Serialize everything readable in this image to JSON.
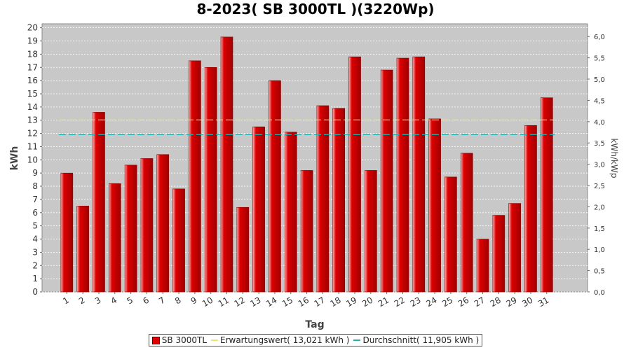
{
  "chart_data": {
    "type": "bar",
    "title": "8-2023( SB 3000TL )(3220Wp)",
    "x_label": "Tag",
    "y_label": "kWh",
    "y2_label": "kWh/kWp",
    "categories": [
      "1",
      "2",
      "3",
      "4",
      "5",
      "6",
      "7",
      "8",
      "9",
      "10",
      "11",
      "12",
      "13",
      "14",
      "15",
      "16",
      "17",
      "18",
      "19",
      "20",
      "21",
      "22",
      "23",
      "24",
      "25",
      "26",
      "27",
      "28",
      "29",
      "30",
      "31"
    ],
    "series": [
      {
        "name": "SB 3000TL",
        "color": "#dd0000",
        "values": [
          9.0,
          6.5,
          13.6,
          8.2,
          9.6,
          10.1,
          10.4,
          7.8,
          17.5,
          17.0,
          19.3,
          6.4,
          12.5,
          16.0,
          12.1,
          9.2,
          14.1,
          13.9,
          17.8,
          9.2,
          16.8,
          17.7,
          17.8,
          13.1,
          8.7,
          10.5,
          4.0,
          5.8,
          6.7,
          12.6,
          14.7
        ]
      }
    ],
    "reference_lines": [
      {
        "name": "Erwartungswert( 13,021 kWh )",
        "value": 13.021,
        "color": "#e8e870"
      },
      {
        "name": "Durchschnitt( 11,905 kWh )",
        "value": 11.905,
        "color": "#20b0b0"
      }
    ],
    "ylim": [
      0,
      20.3
    ],
    "yticks": [
      0,
      1,
      2,
      3,
      4,
      5,
      6,
      7,
      8,
      9,
      10,
      11,
      12,
      13,
      14,
      15,
      16,
      17,
      18,
      19,
      20
    ],
    "y2lim": [
      0,
      6.3
    ],
    "y2ticks": [
      {
        "value": 0,
        "label": "0,0"
      },
      {
        "value": 0.5,
        "label": "0,5"
      },
      {
        "value": 1,
        "label": "1,0"
      },
      {
        "value": 1.5,
        "label": "1,5"
      },
      {
        "value": 2,
        "label": "2,0"
      },
      {
        "value": 2.5,
        "label": "2,5"
      },
      {
        "value": 3,
        "label": "3,0"
      },
      {
        "value": 3.5,
        "label": "3,5"
      },
      {
        "value": 4,
        "label": "4,0"
      },
      {
        "value": 4.5,
        "label": "4,5"
      },
      {
        "value": 5,
        "label": "5,0"
      },
      {
        "value": 5.5,
        "label": "5,5"
      },
      {
        "value": 6,
        "label": "6,0"
      }
    ],
    "grid": true
  }
}
